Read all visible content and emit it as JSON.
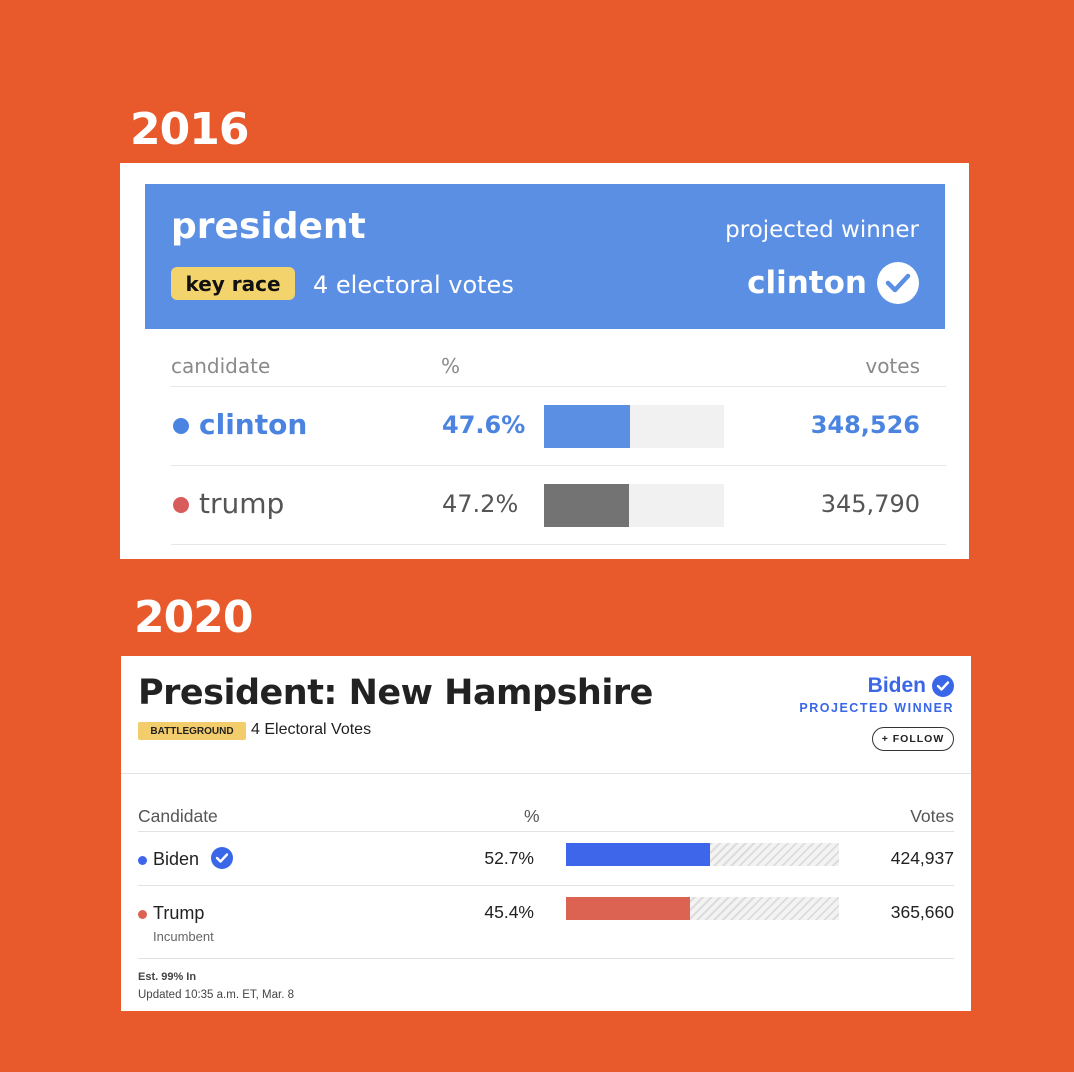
{
  "year_2016": "2016",
  "year_2020": "2020",
  "card_2016": {
    "title": "president",
    "badge": "key race",
    "electoral_votes": "4 electoral votes",
    "projected_label": "projected winner",
    "winner": "clinton",
    "columns": {
      "candidate": "candidate",
      "percent": "%",
      "votes": "votes"
    },
    "candidates": [
      {
        "name": "clinton",
        "percent_text": "47.6%",
        "share": 0.476,
        "votes": "348,526",
        "dot_color": "#4a84e0",
        "bar_color": "#5b8fe3",
        "text_color": "#4a84e0"
      },
      {
        "name": "trump",
        "percent_text": "47.2%",
        "share": 0.472,
        "votes": "345,790",
        "dot_color": "#d95c5c",
        "bar_color": "#737373",
        "text_color": "#555555"
      }
    ],
    "header_color": "#5b8fe3"
  },
  "card_2020": {
    "title": "President: New Hampshire",
    "badge": "BATTLEGROUND",
    "electoral_votes": "4 Electoral Votes",
    "winner": "Biden",
    "projected_label": "PROJECTED WINNER",
    "follow_label": "+ FOLLOW",
    "columns": {
      "candidate": "Candidate",
      "percent": "%",
      "votes": "Votes"
    },
    "candidates": [
      {
        "name": "Biden",
        "subtitle": "",
        "percent_text": "52.7%",
        "share": 0.527,
        "votes": "424,937",
        "color": "#3e66ea",
        "winner": true
      },
      {
        "name": "Trump",
        "subtitle": "Incumbent",
        "percent_text": "45.4%",
        "share": 0.454,
        "votes": "365,660",
        "color": "#dc6251",
        "winner": false
      }
    ],
    "est_in": "Est. 99% In",
    "updated": "Updated 10:35 a.m. ET, Mar. 8",
    "accent_color": "#3a66e8"
  }
}
